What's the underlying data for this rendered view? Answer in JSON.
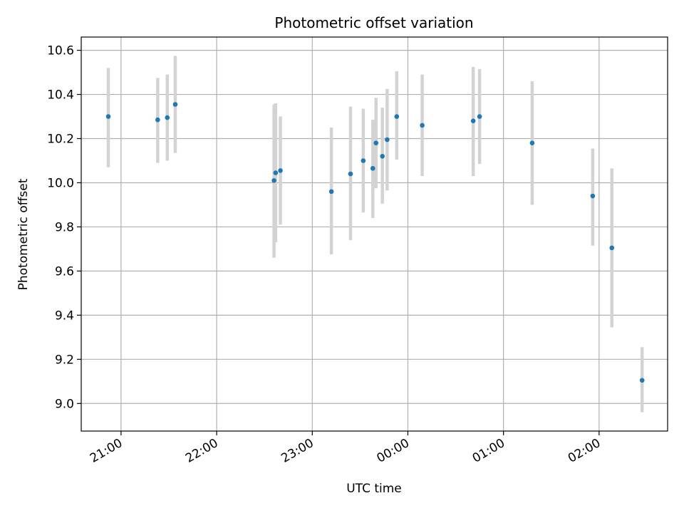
{
  "chart_data": {
    "type": "scatter",
    "title": "Photometric offset variation",
    "xlabel": "UTC time",
    "ylabel": "Photometric offset",
    "x_axis_kind": "time",
    "x_ticks": [
      "21:00",
      "22:00",
      "23:00",
      "00:00",
      "01:00",
      "02:00"
    ],
    "y_ticks": [
      "9.0",
      "9.2",
      "9.4",
      "9.6",
      "9.8",
      "10.0",
      "10.2",
      "10.4",
      "10.6"
    ],
    "xlim": [
      "20:35",
      "02:43"
    ],
    "ylim": [
      8.875,
      10.66
    ],
    "grid": true,
    "colors": {
      "point": "#1f77b4",
      "errorbar": "#d3d3d3",
      "grid": "#b0b0b0"
    },
    "series": [
      {
        "points": [
          {
            "x": "20:52",
            "y": 10.3,
            "err_low": 10.07,
            "err_high": 10.52
          },
          {
            "x": "21:23",
            "y": 10.285,
            "err_low": 10.09,
            "err_high": 10.475
          },
          {
            "x": "21:29",
            "y": 10.295,
            "err_low": 10.1,
            "err_high": 10.49
          },
          {
            "x": "21:34",
            "y": 10.355,
            "err_low": 10.135,
            "err_high": 10.575
          },
          {
            "x": "22:36",
            "y": 10.01,
            "err_low": 9.66,
            "err_high": 10.355
          },
          {
            "x": "22:37",
            "y": 10.045,
            "err_low": 9.73,
            "err_high": 10.36
          },
          {
            "x": "22:40",
            "y": 10.055,
            "err_low": 9.81,
            "err_high": 10.3
          },
          {
            "x": "23:12",
            "y": 9.96,
            "err_low": 9.675,
            "err_high": 10.25
          },
          {
            "x": "23:24",
            "y": 10.04,
            "err_low": 9.74,
            "err_high": 10.345
          },
          {
            "x": "23:32",
            "y": 10.1,
            "err_low": 9.865,
            "err_high": 10.335
          },
          {
            "x": "23:38",
            "y": 10.065,
            "err_low": 9.84,
            "err_high": 10.285
          },
          {
            "x": "23:40",
            "y": 10.18,
            "err_low": 9.975,
            "err_high": 10.385
          },
          {
            "x": "23:44",
            "y": 10.12,
            "err_low": 9.905,
            "err_high": 10.34
          },
          {
            "x": "23:47",
            "y": 10.195,
            "err_low": 9.965,
            "err_high": 10.425
          },
          {
            "x": "23:53",
            "y": 10.3,
            "err_low": 10.105,
            "err_high": 10.505
          },
          {
            "x": "00:09",
            "y": 10.26,
            "err_low": 10.03,
            "err_high": 10.49
          },
          {
            "x": "00:41",
            "y": 10.28,
            "err_low": 10.03,
            "err_high": 10.525
          },
          {
            "x": "00:45",
            "y": 10.3,
            "err_low": 10.085,
            "err_high": 10.515
          },
          {
            "x": "01:18",
            "y": 10.18,
            "err_low": 9.9,
            "err_high": 10.46
          },
          {
            "x": "01:56",
            "y": 9.94,
            "err_low": 9.715,
            "err_high": 10.155
          },
          {
            "x": "02:08",
            "y": 9.705,
            "err_low": 9.345,
            "err_high": 10.065
          },
          {
            "x": "02:27",
            "y": 9.105,
            "err_low": 8.96,
            "err_high": 9.255
          }
        ]
      }
    ]
  }
}
